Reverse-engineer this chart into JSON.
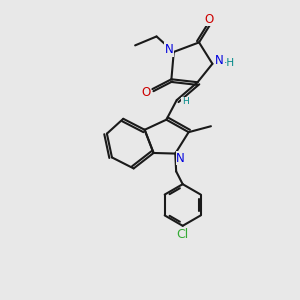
{
  "bg": "#e8e8e8",
  "bc": "#1a1a1a",
  "nc": "#0000dd",
  "oc": "#cc0000",
  "clc": "#33aa33",
  "hc": "#008888",
  "lw": 1.5,
  "fs": 8.0,
  "dpi": 100,
  "xlim": [
    0,
    10
  ],
  "ylim": [
    0,
    10
  ]
}
